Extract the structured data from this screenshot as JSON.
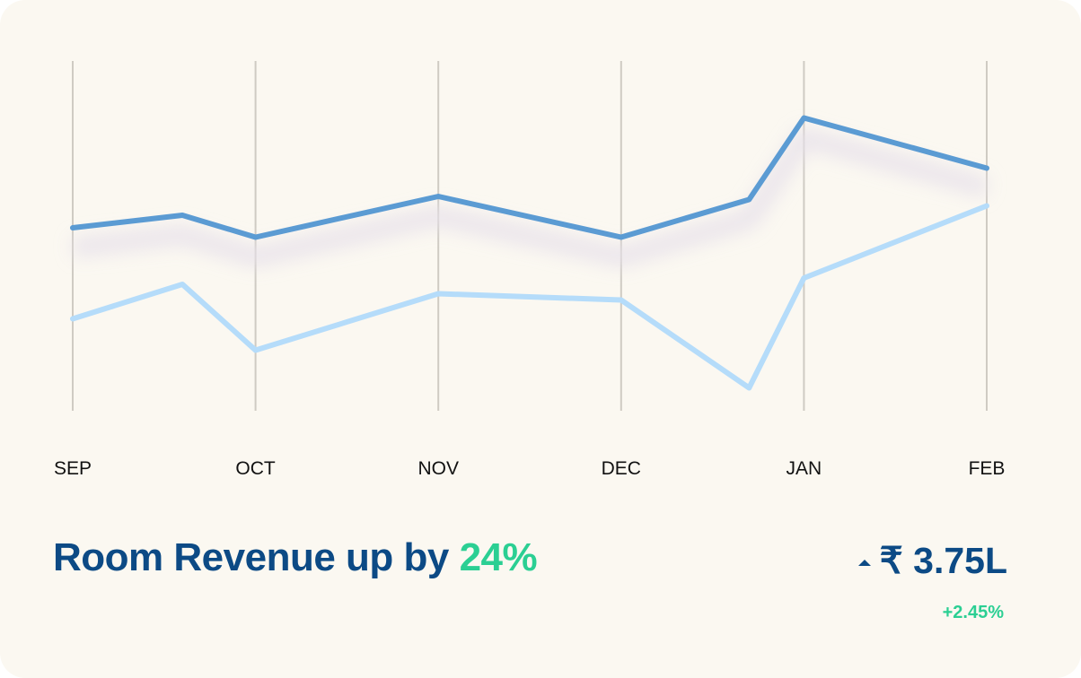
{
  "chart_data": {
    "type": "line",
    "categories": [
      "SEP",
      "OCT",
      "NOV",
      "DEC",
      "JAN",
      "FEB"
    ],
    "x": [
      0,
      0.6,
      1,
      2,
      3,
      3.7,
      4,
      5
    ],
    "series": [
      {
        "name": "dark-series",
        "color": "#5b9bd3",
        "values": [
          56,
          60,
          53,
          66,
          53,
          65,
          91,
          75
        ]
      },
      {
        "name": "light-series",
        "color": "#b5dcfa",
        "values": [
          27,
          38,
          17,
          35,
          33,
          5,
          40,
          63
        ]
      }
    ],
    "ylim": [
      0,
      100
    ],
    "grid": "vertical"
  },
  "summary": {
    "headline_prefix": "Room Revenue up by ",
    "headline_percent": "24%",
    "value": "₹ 3.75L",
    "change": "+2.45%",
    "arrow_icon": "up-caret-icon"
  },
  "colors": {
    "background": "#fbf8f1",
    "grid": "#cfcbc3",
    "headline": "#0c4a85",
    "accent": "#2bcf93"
  }
}
